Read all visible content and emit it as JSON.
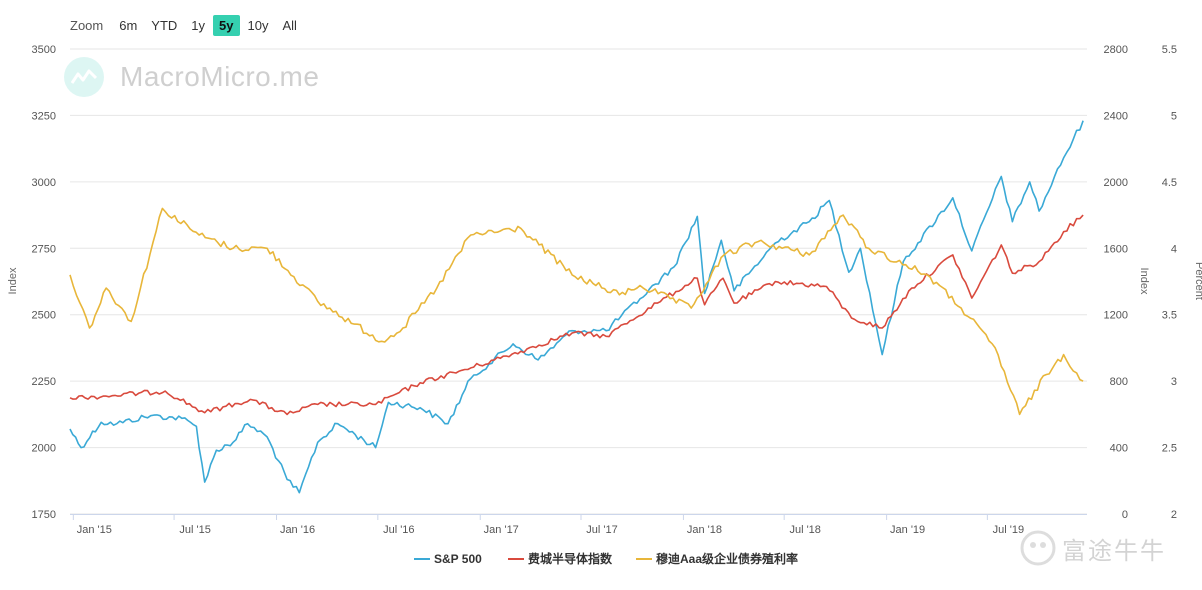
{
  "zoom": {
    "label": "Zoom",
    "buttons": [
      "6m",
      "YTD",
      "1y",
      "5y",
      "10y",
      "All"
    ],
    "active": "5y"
  },
  "watermark_text": "MacroMicro.me",
  "footer_mark_text": "富途牛牛",
  "chart_data": {
    "type": "line",
    "x_ticks": [
      "Jan '15",
      "Jul '15",
      "Jan '16",
      "Jul '16",
      "Jan '17",
      "Jul '17",
      "Jan '18",
      "Jul '18",
      "Jan '19",
      "Jul '19"
    ],
    "x_range": [
      "2014-12-26",
      "2019-12-27"
    ],
    "axes": {
      "left": {
        "title": "Index",
        "ticks": [
          "1750",
          "2000",
          "2250",
          "2500",
          "2750",
          "3000",
          "3250",
          "3500"
        ],
        "range": [
          1750,
          3500
        ]
      },
      "right1": {
        "title": "Index",
        "ticks": [
          "0",
          "400",
          "800",
          "1200",
          "1600",
          "2000",
          "2400",
          "2800"
        ],
        "range": [
          0,
          2800
        ]
      },
      "right2": {
        "title": "Percent",
        "ticks": [
          "2",
          "2.5",
          "3",
          "3.5",
          "4",
          "4.5",
          "5",
          "5.5"
        ],
        "range": [
          2,
          5.5
        ]
      }
    },
    "grid": true,
    "legend_position": "bottom-center",
    "series": [
      {
        "name": "S&P 500",
        "axis": "left",
        "color": "#3aa9d6",
        "points": [
          [
            "2014-12-26",
            2070
          ],
          [
            "2015-01-15",
            2000
          ],
          [
            "2015-02-20",
            2095
          ],
          [
            "2015-03-20",
            2090
          ],
          [
            "2015-05-20",
            2120
          ],
          [
            "2015-07-15",
            2110
          ],
          [
            "2015-08-10",
            2080
          ],
          [
            "2015-08-25",
            1870
          ],
          [
            "2015-09-15",
            1990
          ],
          [
            "2015-10-15",
            2020
          ],
          [
            "2015-11-10",
            2090
          ],
          [
            "2015-12-15",
            2040
          ],
          [
            "2016-01-20",
            1880
          ],
          [
            "2016-02-11",
            1830
          ],
          [
            "2016-03-15",
            2020
          ],
          [
            "2016-04-20",
            2090
          ],
          [
            "2016-06-27",
            2000
          ],
          [
            "2016-07-20",
            2170
          ],
          [
            "2016-09-15",
            2150
          ],
          [
            "2016-11-04",
            2090
          ],
          [
            "2016-12-15",
            2260
          ],
          [
            "2017-03-01",
            2390
          ],
          [
            "2017-04-15",
            2330
          ],
          [
            "2017-06-15",
            2440
          ],
          [
            "2017-08-15",
            2440
          ],
          [
            "2017-10-15",
            2560
          ],
          [
            "2017-12-15",
            2680
          ],
          [
            "2018-01-26",
            2870
          ],
          [
            "2018-02-08",
            2580
          ],
          [
            "2018-03-10",
            2780
          ],
          [
            "2018-04-02",
            2590
          ],
          [
            "2018-06-15",
            2770
          ],
          [
            "2018-08-15",
            2850
          ],
          [
            "2018-09-20",
            2930
          ],
          [
            "2018-10-25",
            2660
          ],
          [
            "2018-11-15",
            2750
          ],
          [
            "2018-12-24",
            2350
          ],
          [
            "2019-01-31",
            2700
          ],
          [
            "2019-04-30",
            2940
          ],
          [
            "2019-06-03",
            2740
          ],
          [
            "2019-07-26",
            3020
          ],
          [
            "2019-08-15",
            2850
          ],
          [
            "2019-09-15",
            3000
          ],
          [
            "2019-10-02",
            2890
          ],
          [
            "2019-11-15",
            3090
          ],
          [
            "2019-12-20",
            3230
          ]
        ]
      },
      {
        "name": "费城半导体指数",
        "axis": "right1",
        "color": "#d94a3d",
        "points": [
          [
            "2014-12-26",
            700
          ],
          [
            "2015-03-01",
            710
          ],
          [
            "2015-06-15",
            740
          ],
          [
            "2015-08-25",
            610
          ],
          [
            "2015-11-15",
            690
          ],
          [
            "2016-01-20",
            600
          ],
          [
            "2016-03-15",
            660
          ],
          [
            "2016-06-27",
            660
          ],
          [
            "2016-09-15",
            790
          ],
          [
            "2016-12-15",
            880
          ],
          [
            "2017-03-15",
            980
          ],
          [
            "2017-06-15",
            1090
          ],
          [
            "2017-08-15",
            1070
          ],
          [
            "2017-11-15",
            1270
          ],
          [
            "2018-01-26",
            1420
          ],
          [
            "2018-02-08",
            1260
          ],
          [
            "2018-03-13",
            1420
          ],
          [
            "2018-04-02",
            1270
          ],
          [
            "2018-06-15",
            1400
          ],
          [
            "2018-09-15",
            1370
          ],
          [
            "2018-10-30",
            1180
          ],
          [
            "2018-12-24",
            1120
          ],
          [
            "2019-02-15",
            1360
          ],
          [
            "2019-04-30",
            1560
          ],
          [
            "2019-06-03",
            1300
          ],
          [
            "2019-07-26",
            1620
          ],
          [
            "2019-08-15",
            1450
          ],
          [
            "2019-10-02",
            1520
          ],
          [
            "2019-11-15",
            1700
          ],
          [
            "2019-12-20",
            1800
          ]
        ]
      },
      {
        "name": "穆迪Aaa级企业债券殖利率",
        "axis": "right2",
        "color": "#e8b63a",
        "points": [
          [
            "2014-12-26",
            3.8
          ],
          [
            "2015-01-30",
            3.4
          ],
          [
            "2015-03-01",
            3.7
          ],
          [
            "2015-04-15",
            3.45
          ],
          [
            "2015-06-10",
            4.3
          ],
          [
            "2015-08-15",
            4.1
          ],
          [
            "2015-10-15",
            4.0
          ],
          [
            "2015-12-15",
            4.0
          ],
          [
            "2016-03-15",
            3.6
          ],
          [
            "2016-07-08",
            3.3
          ],
          [
            "2016-08-15",
            3.4
          ],
          [
            "2016-10-15",
            3.7
          ],
          [
            "2016-12-15",
            4.1
          ],
          [
            "2017-03-15",
            4.15
          ],
          [
            "2017-06-15",
            3.8
          ],
          [
            "2017-09-08",
            3.65
          ],
          [
            "2017-10-15",
            3.72
          ],
          [
            "2018-01-15",
            3.55
          ],
          [
            "2018-03-15",
            3.95
          ],
          [
            "2018-05-15",
            4.05
          ],
          [
            "2018-08-15",
            3.95
          ],
          [
            "2018-10-15",
            4.25
          ],
          [
            "2018-11-30",
            4.0
          ],
          [
            "2019-03-15",
            3.8
          ],
          [
            "2019-05-15",
            3.55
          ],
          [
            "2019-07-15",
            3.25
          ],
          [
            "2019-08-28",
            2.75
          ],
          [
            "2019-10-15",
            3.05
          ],
          [
            "2019-11-15",
            3.2
          ],
          [
            "2019-12-20",
            3.0
          ]
        ]
      }
    ]
  }
}
